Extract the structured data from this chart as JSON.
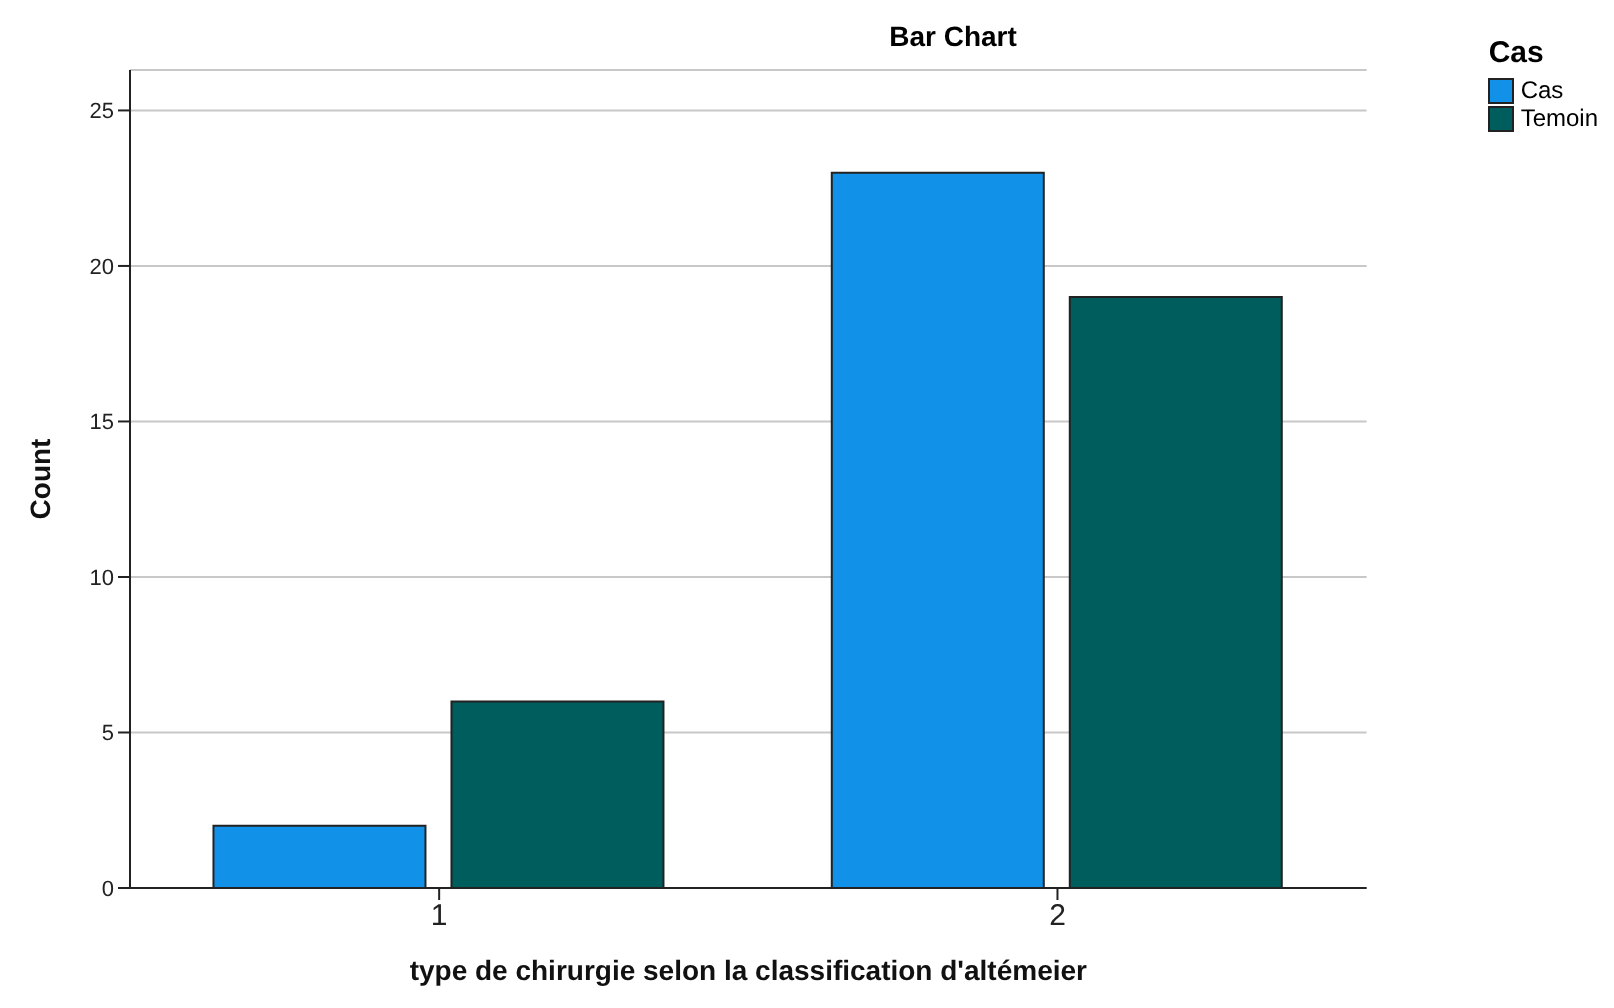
{
  "chart_data": {
    "type": "bar",
    "title": "Bar Chart",
    "xlabel": "type de chirurgie selon la classification d'altémeier",
    "ylabel": "Count",
    "legend_title": "Cas",
    "categories": [
      "1",
      "2"
    ],
    "series": [
      {
        "name": "Cas",
        "color": "#1192e8",
        "values": [
          2,
          23
        ]
      },
      {
        "name": "Temoin",
        "color": "#005d5d",
        "values": [
          6,
          19
        ]
      }
    ],
    "ylim": [
      0,
      26.3
    ],
    "yticks": [
      0,
      5,
      10,
      15,
      20,
      25
    ],
    "grid": "y",
    "legend": "top right"
  }
}
